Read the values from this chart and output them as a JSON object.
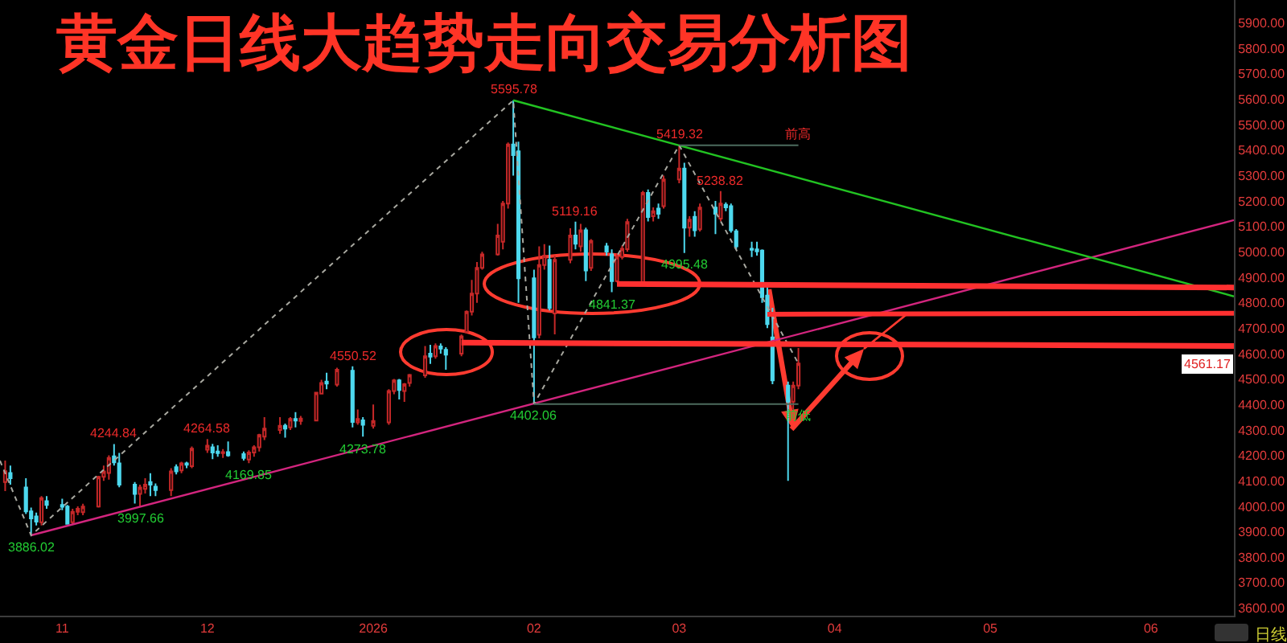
{
  "chart_data": {
    "type": "candlestick",
    "title": "黄金日线大趋势走向交易分析图",
    "x": [
      "2025-10-23",
      "2025-10-24",
      "2025-10-27",
      "2025-10-28",
      "2025-10-29",
      "2025-10-30",
      "2025-10-31",
      "2025-11-03",
      "2025-11-04",
      "2025-11-05",
      "2025-11-06",
      "2025-11-07",
      "2025-11-10",
      "2025-11-11",
      "2025-11-12",
      "2025-11-13",
      "2025-11-14",
      "2025-11-17",
      "2025-11-18",
      "2025-11-19",
      "2025-11-20",
      "2025-11-21",
      "2025-11-24",
      "2025-11-25",
      "2025-11-26",
      "2025-11-27",
      "2025-11-28",
      "2025-12-01",
      "2025-12-02",
      "2025-12-03",
      "2025-12-04",
      "2025-12-05",
      "2025-12-08",
      "2025-12-09",
      "2025-12-10",
      "2025-12-11",
      "2025-12-12",
      "2025-12-15",
      "2025-12-16",
      "2025-12-17",
      "2025-12-18",
      "2025-12-19",
      "2025-12-22",
      "2025-12-23",
      "2025-12-24",
      "2025-12-26",
      "2025-12-29",
      "2025-12-30",
      "2025-12-31",
      "2026-01-02",
      "2026-01-05",
      "2026-01-06",
      "2026-01-07",
      "2026-01-08",
      "2026-01-09",
      "2026-01-12",
      "2026-01-13",
      "2026-01-14",
      "2026-01-15",
      "2026-01-16",
      "2026-01-19",
      "2026-01-20",
      "2026-01-21",
      "2026-01-22",
      "2026-01-23",
      "2026-01-26",
      "2026-01-27",
      "2026-01-28",
      "2026-01-29",
      "2026-01-30",
      "2026-02-02",
      "2026-02-03",
      "2026-02-04",
      "2026-02-05",
      "2026-02-06",
      "2026-02-09",
      "2026-02-10",
      "2026-02-11",
      "2026-02-12",
      "2026-02-13",
      "2026-02-16",
      "2026-02-17",
      "2026-02-18",
      "2026-02-19",
      "2026-02-20",
      "2026-02-23",
      "2026-02-24",
      "2026-02-25",
      "2026-02-26",
      "2026-02-27",
      "2026-03-02",
      "2026-03-03",
      "2026-03-04",
      "2026-03-05",
      "2026-03-06",
      "2026-03-09",
      "2026-03-10",
      "2026-03-11",
      "2026-03-12",
      "2026-03-13",
      "2026-03-16",
      "2026-03-17",
      "2026-03-18",
      "2026-03-19",
      "2026-03-20",
      "2026-03-23",
      "2026-03-24",
      "2026-03-25"
    ],
    "ohlc": [
      [
        4095,
        4180,
        4060,
        4138
      ],
      [
        4131,
        4160,
        4085,
        4110
      ],
      [
        4074,
        4110,
        3970,
        3980
      ],
      [
        3980,
        3995,
        3886.02,
        3952
      ],
      [
        3960,
        3975,
        3925,
        3940
      ],
      [
        3937,
        4040,
        3925,
        4032
      ],
      [
        4020,
        4040,
        3990,
        4005
      ],
      [
        4005,
        4030,
        3985,
        3998
      ],
      [
        3999,
        4005,
        3928,
        3931
      ],
      [
        3937,
        3990,
        3930,
        3978
      ],
      [
        3978,
        4000,
        3965,
        3990
      ],
      [
        3977,
        4010,
        3965,
        3999
      ],
      [
        3999,
        4120,
        3995,
        4116
      ],
      [
        4116,
        4160,
        4100,
        4137
      ],
      [
        4131,
        4200,
        4105,
        4190
      ],
      [
        4196,
        4244.84,
        4160,
        4173
      ],
      [
        4169,
        4210,
        4075,
        4085
      ],
      [
        4085,
        4095,
        4011,
        4049
      ],
      [
        4049,
        4085,
        3997.66,
        4074
      ],
      [
        4068,
        4110,
        4050,
        4085
      ],
      [
        4095,
        4130,
        4040,
        4085
      ],
      [
        4077,
        4090,
        4040,
        4064
      ],
      [
        4064,
        4150,
        4040,
        4137
      ],
      [
        4154,
        4165,
        4125,
        4137
      ],
      [
        4141,
        4175,
        4130,
        4169
      ],
      [
        4169,
        4175,
        4150,
        4163
      ],
      [
        4158,
        4235,
        4150,
        4226
      ],
      [
        4222,
        4264.58,
        4210,
        4238
      ],
      [
        4232,
        4245,
        4185,
        4211
      ],
      [
        4215,
        4240,
        4195,
        4209
      ],
      [
        4209,
        4225,
        4190,
        4213
      ],
      [
        4213,
        4255,
        4195,
        4200
      ],
      [
        4205,
        4215,
        4180,
        4190
      ],
      [
        4184,
        4220,
        4169.85,
        4211
      ],
      [
        4211,
        4240,
        4195,
        4232
      ],
      [
        4232,
        4285,
        4215,
        4280
      ],
      [
        4274,
        4350,
        4260,
        4305
      ],
      [
        4300,
        4350,
        4285,
        4316
      ],
      [
        4316,
        4325,
        4270,
        4305
      ],
      [
        4310,
        4350,
        4300,
        4343
      ],
      [
        4343,
        4370,
        4310,
        4337
      ],
      [
        4335,
        4355,
        4320,
        4345
      ],
      [
        4337,
        4450,
        4335,
        4447
      ],
      [
        4443,
        4497,
        4440,
        4485
      ],
      [
        4490,
        4525,
        4460,
        4482
      ],
      [
        4478,
        4545,
        4470,
        4537
      ],
      [
        4533,
        4550.52,
        4310,
        4331
      ],
      [
        4330,
        4380,
        4320,
        4343
      ],
      [
        4338,
        4350,
        4273.78,
        4320
      ],
      [
        4316,
        4400,
        4305,
        4335
      ],
      [
        4330,
        4460,
        4320,
        4453
      ],
      [
        4453,
        4500,
        4440,
        4495
      ],
      [
        4495,
        4500,
        4420,
        4457
      ],
      [
        4453,
        4485,
        4410,
        4480
      ],
      [
        4485,
        4520,
        4470,
        4516
      ],
      [
        4515,
        4630,
        4505,
        4590
      ],
      [
        4600,
        4635,
        4560,
        4588
      ],
      [
        4590,
        4640,
        4580,
        4630
      ],
      [
        4628,
        4640,
        4600,
        4620
      ],
      [
        4615,
        4625,
        4537,
        4596
      ],
      [
        4600,
        4675,
        4590,
        4668
      ],
      [
        4685,
        4770,
        4680,
        4765
      ],
      [
        4765,
        4890,
        4750,
        4836
      ],
      [
        4836,
        4960,
        4800,
        4937
      ],
      [
        4937,
        5000,
        4930,
        4990
      ],
      [
        4990,
        5110,
        4985,
        5064
      ],
      [
        5040,
        5200,
        5010,
        5190
      ],
      [
        5190,
        5430,
        5170,
        5422
      ],
      [
        5422,
        5595.78,
        5300,
        5380
      ],
      [
        5395,
        5433,
        4800,
        4896
      ],
      [
        4896,
        4930,
        4402.06,
        4664
      ],
      [
        4674,
        5022,
        4660,
        4948
      ],
      [
        4948,
        5030,
        4930,
        4985
      ],
      [
        4969,
        5025,
        4770,
        4779
      ],
      [
        4758,
        4985,
        4676,
        4969
      ],
      [
        4969,
        5093,
        4955,
        5064
      ],
      [
        5064,
        5119.16,
        5010,
        5032
      ],
      [
        5022,
        5110,
        5000,
        5085
      ],
      [
        5085,
        5095,
        4885,
        4927
      ],
      [
        4937,
        5050,
        4925,
        5043
      ],
      [
        5022,
        5035,
        4985,
        5001
      ],
      [
        4990,
        5010,
        4841.37,
        4885
      ],
      [
        4885,
        4995,
        4880,
        4980
      ],
      [
        4980,
        5025,
        4970,
        5012
      ],
      [
        5011,
        5130,
        5000,
        5117
      ],
      [
        4880,
        5240,
        4875,
        5232
      ],
      [
        5232,
        5245,
        5120,
        5137
      ],
      [
        5140,
        5175,
        5120,
        5160
      ],
      [
        5170,
        5190,
        5130,
        5150
      ],
      [
        5180,
        5300,
        5170,
        5285
      ],
      [
        5285,
        5419.32,
        5270,
        5327
      ],
      [
        5327,
        5350,
        4995.48,
        5095
      ],
      [
        5095,
        5140,
        5060,
        5127
      ],
      [
        5138,
        5160,
        5060,
        5085
      ],
      [
        5089,
        5190,
        5080,
        5174
      ],
      [
        5174,
        5200,
        5070,
        5150
      ],
      [
        5131,
        5238.82,
        5120,
        5190
      ],
      [
        5185,
        5195,
        5160,
        5175
      ],
      [
        5180,
        5190,
        5075,
        5085
      ],
      [
        5081,
        5090,
        5010,
        5022
      ],
      [
        5012,
        5040,
        4980,
        5008
      ],
      [
        5010,
        5040,
        4985,
        5002
      ],
      [
        5005,
        5010,
        4800,
        4822
      ],
      [
        4828,
        4880,
        4700,
        4716
      ],
      [
        4664,
        4780,
        4480,
        4495
      ],
      [
        4474,
        4490,
        4100,
        4411
      ],
      [
        4411,
        4490,
        4380,
        4474
      ],
      [
        4474,
        4622,
        4460,
        4561.17
      ]
    ],
    "colors": [
      "#c62828",
      "#4dd8ee",
      "#4dd8ee",
      "#4dd8ee",
      "#4dd8ee",
      "#c62828",
      "#4dd8ee",
      "#4dd8ee",
      "#4dd8ee",
      "#c62828",
      "#c62828",
      "#c62828",
      "#c62828",
      "#c62828",
      "#c62828",
      "#4dd8ee",
      "#4dd8ee",
      "#4dd8ee",
      "#c62828",
      "#c62828",
      "#4dd8ee",
      "#4dd8ee",
      "#c62828",
      "#4dd8ee",
      "#c62828",
      "#4dd8ee",
      "#c62828",
      "#c62828",
      "#4dd8ee",
      "#4dd8ee",
      "#c62828",
      "#4dd8ee",
      "#4dd8ee",
      "#c62828",
      "#c62828",
      "#c62828",
      "#c62828",
      "#c62828",
      "#4dd8ee",
      "#c62828",
      "#4dd8ee",
      "#c62828",
      "#c62828",
      "#c62828",
      "#4dd8ee",
      "#c62828",
      "#4dd8ee",
      "#c62828",
      "#4dd8ee",
      "#c62828",
      "#c62828",
      "#c62828",
      "#4dd8ee",
      "#c62828",
      "#c62828",
      "#c62828",
      "#4dd8ee",
      "#c62828",
      "#4dd8ee",
      "#4dd8ee",
      "#c62828",
      "#c62828",
      "#c62828",
      "#c62828",
      "#c62828",
      "#c62828",
      "#c62828",
      "#c62828",
      "#4dd8ee",
      "#4dd8ee",
      "#4dd8ee",
      "#c62828",
      "#c62828",
      "#4dd8ee",
      "#c62828",
      "#c62828",
      "#4dd8ee",
      "#c62828",
      "#4dd8ee",
      "#c62828",
      "#4dd8ee",
      "#4dd8ee",
      "#c62828",
      "#c62828",
      "#c62828",
      "#c62828",
      "#4dd8ee",
      "#c62828",
      "#4dd8ee",
      "#c62828",
      "#c62828",
      "#4dd8ee",
      "#c62828",
      "#4dd8ee",
      "#c62828",
      "#4dd8ee",
      "#c62828",
      "#4dd8ee",
      "#4dd8ee",
      "#4dd8ee",
      "#4dd8ee",
      "#4dd8ee",
      "#4dd8ee",
      "#4dd8ee",
      "#4dd8ee",
      "#4dd8ee",
      "#c62828",
      "#c62828"
    ],
    "series": [
      {
        "type": "line",
        "color": "#d3257e",
        "x": [
          "2025-10-28",
          "2026-06-17"
        ],
        "values": [
          3886,
          5125
        ]
      },
      {
        "type": "line",
        "color": "#22c322",
        "x": [
          "2026-01-29",
          "2026-06-17"
        ],
        "values": [
          5596,
          4825
        ]
      },
      {
        "type": "line",
        "color": "#a8a8a0",
        "line_style": "dotted",
        "x": [
          "2025-10-22",
          "2025-10-28",
          "2026-01-29",
          "2026-02-02",
          "2026-03-02",
          "2026-03-25"
        ],
        "values": [
          4179,
          3886,
          5596,
          4402,
          5419,
          4561
        ]
      },
      {
        "type": "line",
        "color": "#4d6b5e",
        "x": [
          "2026-03-02",
          "2026-03-25"
        ],
        "values": [
          5419,
          5419
        ]
      },
      {
        "type": "line",
        "color": "#4d6b5e",
        "x": [
          "2026-02-02",
          "2026-03-25"
        ],
        "values": [
          4402,
          4402
        ]
      },
      {
        "type": "line",
        "color": "#ff3030",
        "x": [
          "2026-01-19",
          "2026-06-17"
        ],
        "values": [
          4643,
          4630
        ]
      },
      {
        "type": "line",
        "color": "#ff3030",
        "x": [
          "2026-02-18",
          "2026-06-17"
        ],
        "values": [
          4874,
          4860
        ]
      },
      {
        "type": "line",
        "color": "#ff3030",
        "x": [
          "2026-03-19",
          "2026-06-17"
        ],
        "values": [
          4755,
          4759
        ]
      }
    ],
    "xlim": [
      "2025-10-22",
      "2026-06-17"
    ],
    "xticks": [
      {
        "value": "2025-11-03",
        "label": "11"
      },
      {
        "value": "2025-12-01",
        "label": "12"
      },
      {
        "value": "2026-01-02",
        "label": "2026"
      },
      {
        "value": "2026-02-02",
        "label": "02"
      },
      {
        "value": "2026-03-02",
        "label": "03"
      },
      {
        "value": "2026-04-01",
        "label": "04"
      },
      {
        "value": "2026-05-01",
        "label": "05"
      },
      {
        "value": "2026-06-01",
        "label": "06"
      }
    ],
    "ylim": [
      3570,
      5990
    ],
    "yticks": [
      {
        "value": 3600,
        "label": "3600.00"
      },
      {
        "value": 3700,
        "label": "3700.00"
      },
      {
        "value": 3800,
        "label": "3800.00"
      },
      {
        "value": 3900,
        "label": "3900.00"
      },
      {
        "value": 4000,
        "label": "4000.00"
      },
      {
        "value": 4100,
        "label": "4100.00"
      },
      {
        "value": 4200,
        "label": "4200.00"
      },
      {
        "value": 4300,
        "label": "4300.00"
      },
      {
        "value": 4400,
        "label": "4400.00"
      },
      {
        "value": 4500,
        "label": "4500.00"
      },
      {
        "value": 4600,
        "label": "4600.00"
      },
      {
        "value": 4700,
        "label": "4700.00"
      },
      {
        "value": 4800,
        "label": "4800.00"
      },
      {
        "value": 4900,
        "label": "4900.00"
      },
      {
        "value": 5000,
        "label": "5000.00"
      },
      {
        "value": 5100,
        "label": "5100.00"
      },
      {
        "value": 5200,
        "label": "5200.00"
      },
      {
        "value": 5300,
        "label": "5300.00"
      },
      {
        "value": 5400,
        "label": "5400.00"
      },
      {
        "value": 5500,
        "label": "5500.00"
      },
      {
        "value": 5600,
        "label": "5600.00"
      },
      {
        "value": 5700,
        "label": "5700.00"
      },
      {
        "value": 5800,
        "label": "5800.00"
      },
      {
        "value": 5900,
        "label": "5900.00"
      }
    ],
    "annotations": [
      {
        "text": "3886.02",
        "x": "2025-10-28",
        "y": 3886.02
      },
      {
        "text": "4244.84",
        "x": "2025-11-13",
        "y": 4244.84
      },
      {
        "text": "3997.66",
        "x": "2025-11-18",
        "y": 3997.66
      },
      {
        "text": "4264.58",
        "x": "2025-12-01",
        "y": 4264.58
      },
      {
        "text": "4169.85",
        "x": "2025-12-09",
        "y": 4169.85
      },
      {
        "text": "4550.52",
        "x": "2025-12-29",
        "y": 4550.52
      },
      {
        "text": "4273.78",
        "x": "2025-12-31",
        "y": 4273.78
      },
      {
        "text": "5595.78",
        "x": "2026-01-29",
        "y": 5595.78
      },
      {
        "text": "4402.06",
        "x": "2026-02-02",
        "y": 4402.06
      },
      {
        "text": "5119.16",
        "x": "2026-02-10",
        "y": 5119.16
      },
      {
        "text": "4841.37",
        "x": "2026-02-17",
        "y": 4841.37
      },
      {
        "text": "5419.32",
        "x": "2026-03-02",
        "y": 5419.32
      },
      {
        "text": "4995.48",
        "x": "2026-03-03",
        "y": 4995.48
      },
      {
        "text": "5238.82",
        "x": "2026-03-10",
        "y": 5238.82
      },
      {
        "text": "前高",
        "x": "2026-03-25",
        "y": 5419
      },
      {
        "text": "前低",
        "x": "2026-03-25",
        "y": 4402
      },
      {
        "text": "4561.17",
        "y": 4561.17
      },
      "日线"
    ]
  }
}
